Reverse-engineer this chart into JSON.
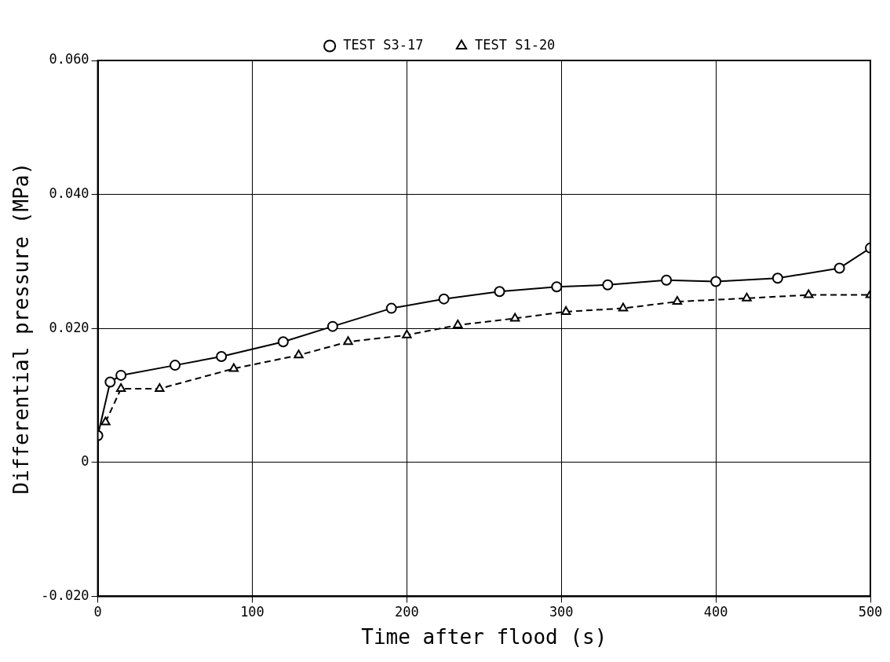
{
  "chart_data": {
    "type": "line",
    "xlabel": "Time after flood (s)",
    "ylabel": "Differential pressure (MPa)",
    "xlim": [
      0,
      500
    ],
    "xticks": [
      0,
      100,
      200,
      300,
      400,
      500
    ],
    "ylim": [
      -0.02,
      0.06
    ],
    "yticks": [
      {
        "value": -0.02,
        "label": "-0.020"
      },
      0,
      {
        "value": 0.02,
        "label": "0.020"
      },
      {
        "value": 0.04,
        "label": "0.040"
      },
      {
        "value": 0.06,
        "label": "0.060"
      }
    ],
    "grid": true,
    "legend": "top",
    "series": [
      {
        "name": "TEST S3-17",
        "color": "#000000",
        "line_style": "solid",
        "marker": "circle",
        "x": [
          0,
          8,
          15,
          50,
          80,
          120,
          152,
          190,
          224,
          260,
          297,
          330,
          368,
          400,
          440,
          480,
          500
        ],
        "values": [
          0.004,
          0.012,
          0.013,
          0.0145,
          0.0158,
          0.018,
          0.0203,
          0.023,
          0.0244,
          0.0255,
          0.0262,
          0.0265,
          0.0272,
          0.027,
          0.0275,
          0.029,
          0.032
        ]
      },
      {
        "name": "TEST S1-20",
        "color": "#000000",
        "line_style": "dashed",
        "marker": "triangle",
        "x": [
          5,
          15,
          40,
          88,
          130,
          162,
          200,
          233,
          270,
          303,
          340,
          375,
          420,
          460,
          500
        ],
        "values": [
          0.006,
          0.011,
          0.011,
          0.014,
          0.016,
          0.018,
          0.019,
          0.0205,
          0.0215,
          0.0225,
          0.023,
          0.024,
          0.0245,
          0.025,
          0.025
        ]
      }
    ]
  }
}
